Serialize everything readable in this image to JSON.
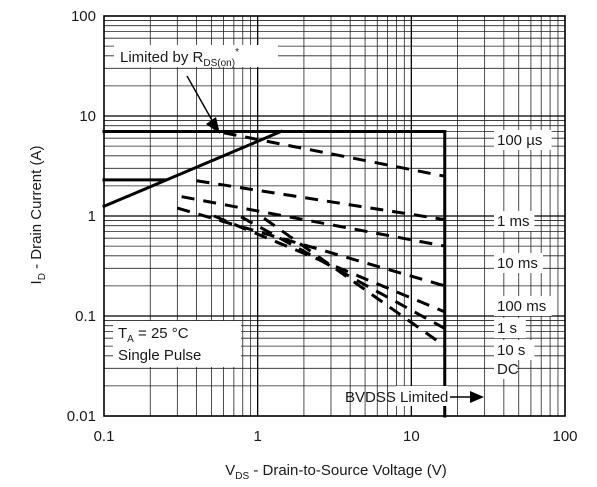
{
  "chart_data": {
    "type": "line",
    "scale": {
      "x": "log",
      "y": "log"
    },
    "xlim": [
      0.1,
      100
    ],
    "ylim": [
      0.01,
      100
    ],
    "grid": true,
    "x_ticks": [
      {
        "value": 0.1,
        "label": "0.1"
      },
      {
        "value": 1,
        "label": "1"
      },
      {
        "value": 10,
        "label": "10"
      },
      {
        "value": 100,
        "label": "100"
      }
    ],
    "y_ticks": [
      {
        "value": 100,
        "label": "100"
      },
      {
        "value": 10,
        "label": "10"
      },
      {
        "value": 1,
        "label": "1"
      },
      {
        "value": 0.1,
        "label": "0.1"
      },
      {
        "value": 0.01,
        "label": "0.01"
      }
    ],
    "xlabel": {
      "main": "V",
      "sub": "DS",
      "rest": " - Drain-to-Source Voltage (V)"
    },
    "ylabel": {
      "main": "I",
      "sub": "D",
      "rest": " - Drain Current (A)"
    },
    "annotations": {
      "rds": {
        "main": "Limited by R",
        "sub": "DS(on)",
        "sup": "*"
      },
      "ta": {
        "main": "T",
        "sub": "A",
        "rest": " = 25 °C"
      },
      "pulse": "Single Pulse",
      "bvdss": "BVDSS Limited"
    },
    "series": [
      {
        "name": "100 µs",
        "style": "dashed",
        "points": [
          [
            0.6,
            6.8
          ],
          [
            1.75,
            2.4
          ]
        ]
      },
      {
        "name": "1 ms",
        "style": "dashed",
        "points": [
          [
            0.4,
            2.25
          ],
          [
            1.0,
            0.92
          ]
        ]
      },
      {
        "name": "10 ms",
        "style": "dashed",
        "points": [
          [
            0.32,
            1.56
          ],
          [
            1.0,
            0.5
          ]
        ]
      },
      {
        "name": "100 ms",
        "style": "dashed",
        "points": [
          [
            0.32,
            1.2
          ],
          [
            1.0,
            0.38
          ]
        ]
      },
      {
        "name": "1 s",
        "style": "dashed",
        "points": [
          [
            0.3,
            1.2
          ],
          [
            1.0,
            0.36
          ]
        ]
      },
      {
        "name": "10 s",
        "style": "dashed",
        "points": [
          [
            0.3,
            1.2
          ],
          [
            1.0,
            0.36
          ]
        ]
      },
      {
        "name": "DC",
        "style": "dashed",
        "points": [
          [
            0.3,
            1.2
          ],
          [
            1.0,
            0.36
          ]
        ]
      }
    ]
  }
}
